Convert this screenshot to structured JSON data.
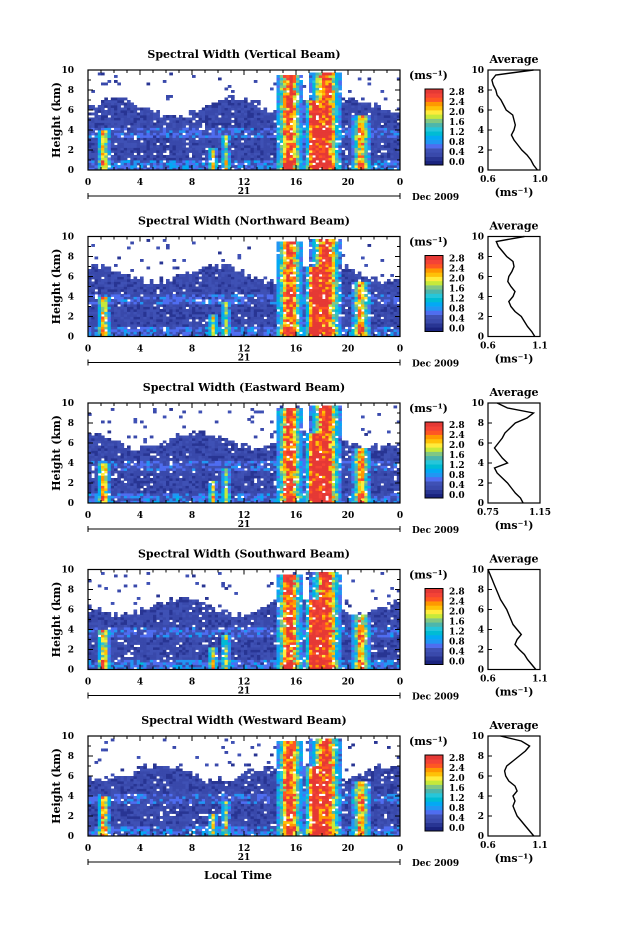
{
  "colors": {
    "scale": [
      "#1a237e",
      "#283593",
      "#3949ab",
      "#3f51b5",
      "#4f6df0",
      "#2196f3",
      "#03a9f4",
      "#00bcd4",
      "#26c6da",
      "#4db6ac",
      "#81c784",
      "#c6e93a",
      "#ffeb3b",
      "#ffc107",
      "#ff9800",
      "#ff5722",
      "#f44336",
      "#e53935"
    ]
  },
  "shared": {
    "x_ticks": [
      "0",
      "4",
      "8",
      "12",
      "16",
      "20",
      "0"
    ],
    "day_label": "21",
    "month_label": "Dec 2009",
    "height_ticks": [
      "0",
      "2",
      "4",
      "6",
      "8",
      "10"
    ],
    "ylabel": "Height (km)",
    "xlabel": "Local Time",
    "unit": "(ms⁻¹)",
    "avg_title": "Average",
    "avg_unit": "(ms⁻¹)"
  },
  "chart_data": [
    {
      "type": "heatmap",
      "title": "Spectral Width (Vertical Beam)",
      "xlim": [
        0,
        24
      ],
      "ylim": [
        0,
        10
      ],
      "colorbar_ticks": [
        "0.0",
        "0.4",
        "0.8",
        "1.2",
        "1.6",
        "2.0",
        "2.4",
        "2.8"
      ],
      "average": {
        "type": "line",
        "xlim": [
          0.6,
          1.0
        ],
        "x_ticks": [
          "0.6",
          "1.0"
        ],
        "height_km": [
          0,
          0.5,
          1,
          1.5,
          2,
          2.5,
          3,
          3.5,
          4,
          4.5,
          5,
          5.5,
          6,
          6.5,
          7,
          7.5,
          8,
          8.5,
          9,
          9.5,
          10
        ],
        "values": [
          0.98,
          0.95,
          0.93,
          0.9,
          0.86,
          0.83,
          0.8,
          0.78,
          0.8,
          0.81,
          0.8,
          0.79,
          0.74,
          0.72,
          0.7,
          0.67,
          0.66,
          0.64,
          0.63,
          0.66,
          0.95
        ]
      }
    },
    {
      "type": "heatmap",
      "title": "Spectral Width (Northward Beam)",
      "xlim": [
        0,
        24
      ],
      "ylim": [
        0,
        10
      ],
      "colorbar_ticks": [
        "0.0",
        "0.4",
        "0.8",
        "1.2",
        "1.6",
        "2.0",
        "2.4",
        "2.8"
      ],
      "average": {
        "type": "line",
        "xlim": [
          0.6,
          1.1
        ],
        "x_ticks": [
          "0.6",
          "1.1"
        ],
        "height_km": [
          0,
          0.5,
          1,
          1.5,
          2,
          2.5,
          3,
          3.5,
          4,
          4.5,
          5,
          5.5,
          6,
          6.5,
          7,
          7.5,
          8,
          8.5,
          9,
          9.5,
          10
        ],
        "values": [
          1.05,
          1.02,
          0.98,
          0.95,
          0.92,
          0.86,
          0.82,
          0.8,
          0.84,
          0.86,
          0.82,
          0.79,
          0.8,
          0.83,
          0.85,
          0.84,
          0.78,
          0.74,
          0.7,
          0.68,
          0.95
        ]
      }
    },
    {
      "type": "heatmap",
      "title": "Spectral Width (Eastward Beam)",
      "xlim": [
        0,
        24
      ],
      "ylim": [
        0,
        10
      ],
      "colorbar_ticks": [
        "0.0",
        "0.4",
        "0.8",
        "1.2",
        "1.6",
        "2.0",
        "2.4",
        "2.8"
      ],
      "average": {
        "type": "line",
        "xlim": [
          0.75,
          1.15
        ],
        "x_ticks": [
          "0.75",
          "1.15"
        ],
        "height_km": [
          0,
          0.5,
          1,
          1.5,
          2,
          2.5,
          3,
          3.5,
          4,
          4.5,
          5,
          5.5,
          6,
          6.5,
          7,
          7.5,
          8,
          8.5,
          9,
          9.5,
          10
        ],
        "values": [
          1.02,
          1.0,
          0.96,
          0.93,
          0.9,
          0.86,
          0.82,
          0.8,
          0.9,
          0.86,
          0.83,
          0.8,
          0.83,
          0.86,
          0.88,
          0.92,
          0.96,
          1.05,
          1.1,
          0.9,
          0.82
        ]
      }
    },
    {
      "type": "heatmap",
      "title": "Spectral Width (Southward Beam)",
      "xlim": [
        0,
        24
      ],
      "ylim": [
        0,
        10
      ],
      "colorbar_ticks": [
        "0.0",
        "0.4",
        "0.8",
        "1.2",
        "1.6",
        "2.0",
        "2.4",
        "2.8"
      ],
      "average": {
        "type": "line",
        "xlim": [
          0.6,
          1.1
        ],
        "x_ticks": [
          "0.6",
          "1.1"
        ],
        "height_km": [
          0,
          0.5,
          1,
          1.5,
          2,
          2.5,
          3,
          3.5,
          4,
          4.5,
          5,
          5.5,
          6,
          6.5,
          7,
          7.5,
          8,
          8.5,
          9,
          9.5,
          10
        ],
        "values": [
          1.06,
          1.02,
          0.98,
          0.95,
          0.9,
          0.86,
          0.88,
          0.92,
          0.88,
          0.84,
          0.82,
          0.8,
          0.78,
          0.75,
          0.72,
          0.7,
          0.68,
          0.66,
          0.64,
          0.62,
          0.6
        ]
      }
    },
    {
      "type": "heatmap",
      "title": "Spectral Width (Westward Beam)",
      "xlim": [
        0,
        24
      ],
      "ylim": [
        0,
        10
      ],
      "colorbar_ticks": [
        "0.0",
        "0.4",
        "0.8",
        "1.2",
        "1.6",
        "2.0",
        "2.4",
        "2.8"
      ],
      "average": {
        "type": "line",
        "xlim": [
          0.6,
          1.1
        ],
        "x_ticks": [
          "0.6",
          "1.1"
        ],
        "height_km": [
          0,
          0.5,
          1,
          1.5,
          2,
          2.5,
          3,
          3.5,
          4,
          4.5,
          5,
          5.5,
          6,
          6.5,
          7,
          7.5,
          8,
          8.5,
          9,
          9.5,
          10
        ],
        "values": [
          1.04,
          1.0,
          0.96,
          0.92,
          0.88,
          0.86,
          0.84,
          0.86,
          0.84,
          0.88,
          0.86,
          0.8,
          0.77,
          0.76,
          0.78,
          0.84,
          0.9,
          0.96,
          1.0,
          0.92,
          0.72
        ]
      }
    }
  ]
}
